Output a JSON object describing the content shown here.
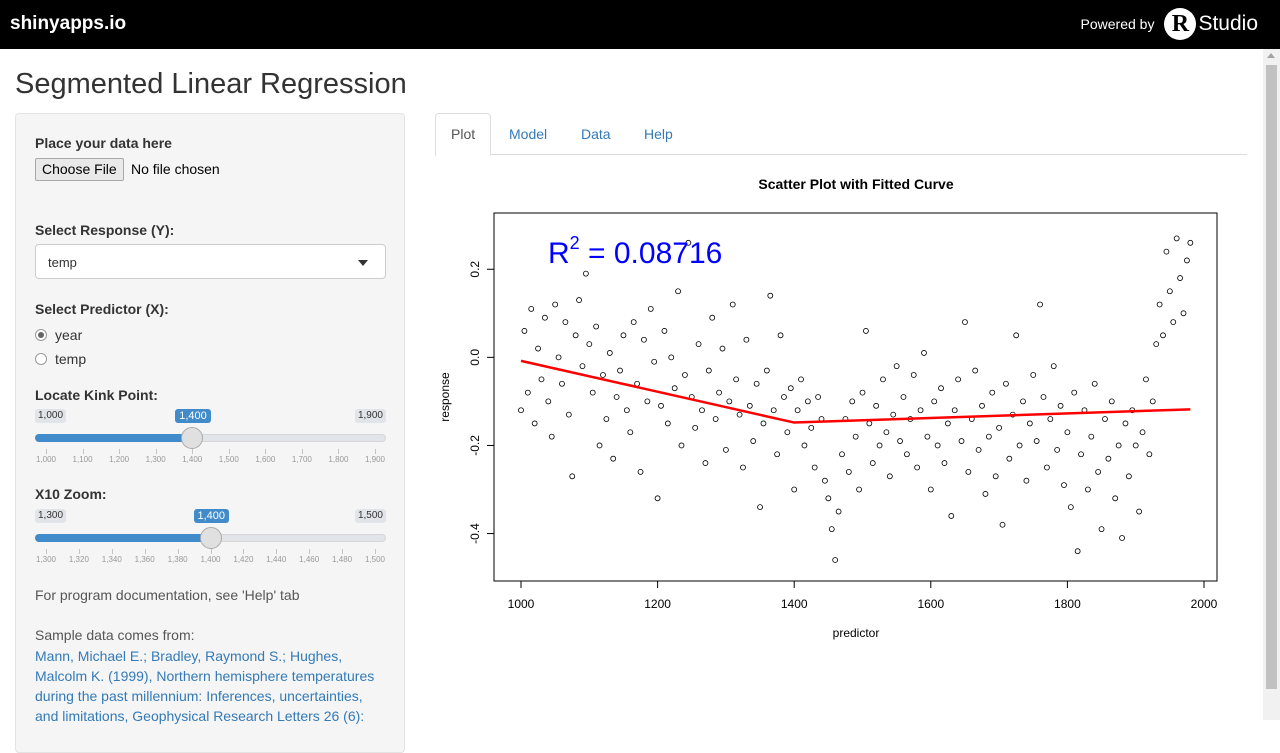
{
  "topbar": {
    "brand": "shinyapps.io",
    "powered_by": "Powered by",
    "rstudio_r": "R",
    "rstudio_studio": "Studio"
  },
  "page": {
    "title": "Segmented Linear Regression"
  },
  "sidebar": {
    "data_label": "Place your data here",
    "choose_file": "Choose File",
    "file_status": "No file chosen",
    "response_label": "Select Response (Y):",
    "response_value": "temp",
    "predictor_label": "Select Predictor (X):",
    "predictor_options": [
      {
        "label": "year",
        "selected": true
      },
      {
        "label": "temp",
        "selected": false
      }
    ],
    "kink_label": "Locate Kink Point:",
    "kink_slider": {
      "min": 1000,
      "max": 1900,
      "value": 1400,
      "min_label": "1,000",
      "max_label": "1,900",
      "value_label": "1,400",
      "ticks": [
        "1,000",
        "1,100",
        "1,200",
        "1,300",
        "1,400",
        "1,500",
        "1,600",
        "1,700",
        "1,800",
        "1,900"
      ]
    },
    "zoom_label": "X10 Zoom:",
    "zoom_slider": {
      "min": 1300,
      "max": 1500,
      "value": 1400,
      "min_label": "1,300",
      "max_label": "1,500",
      "value_label": "1,400",
      "ticks": [
        "1,300",
        "1,320",
        "1,340",
        "1,360",
        "1,380",
        "1,400",
        "1,420",
        "1,440",
        "1,460",
        "1,480",
        "1,500"
      ]
    },
    "doc_note": "For program documentation, see 'Help' tab",
    "sample_note": "Sample data comes from:",
    "citation": "Mann, Michael E.; Bradley, Raymond S.; Hughes, Malcolm K. (1999), Northern hemisphere temperatures during the past millennium: Inferences, uncertainties, and limitations, Geophysical Research Letters 26 (6):"
  },
  "tabs": [
    {
      "label": "Plot",
      "active": true
    },
    {
      "label": "Model",
      "active": false
    },
    {
      "label": "Data",
      "active": false
    },
    {
      "label": "Help",
      "active": false
    }
  ],
  "colors": {
    "fit_line": "#ff0000",
    "r2_text": "#0000ff",
    "link": "#337ab7",
    "slider_fill": "#428bca"
  },
  "chart_data": {
    "type": "scatter",
    "title": "Scatter Plot with Fitted Curve",
    "xlabel": "predictor",
    "ylabel": "response",
    "xlim": [
      1000,
      1980
    ],
    "ylim": [
      -0.46,
      0.28
    ],
    "xticks": [
      1000,
      1200,
      1400,
      1600,
      1800,
      2000
    ],
    "yticks": [
      -0.4,
      -0.2,
      0.0,
      0.2
    ],
    "ytick_labels": [
      "-0.4",
      "-0.2",
      "0.0",
      "0.2"
    ],
    "annotation": {
      "label_base": "R",
      "label_sup": "2",
      "label_rest": " = 0.08716"
    },
    "fit_line": {
      "x": [
        1000,
        1400,
        1980
      ],
      "y": [
        -0.008,
        -0.148,
        -0.118
      ]
    },
    "series": [
      {
        "points": [
          [
            1000,
            -0.12
          ],
          [
            1005,
            0.06
          ],
          [
            1010,
            -0.08
          ],
          [
            1015,
            0.11
          ],
          [
            1020,
            -0.15
          ],
          [
            1025,
            0.02
          ],
          [
            1030,
            -0.05
          ],
          [
            1035,
            0.09
          ],
          [
            1040,
            -0.1
          ],
          [
            1045,
            -0.18
          ],
          [
            1050,
            0.12
          ],
          [
            1055,
            0.0
          ],
          [
            1060,
            -0.06
          ],
          [
            1065,
            0.08
          ],
          [
            1070,
            -0.13
          ],
          [
            1075,
            -0.27
          ],
          [
            1080,
            0.05
          ],
          [
            1085,
            0.13
          ],
          [
            1090,
            -0.02
          ],
          [
            1095,
            0.19
          ],
          [
            1100,
            0.03
          ],
          [
            1105,
            -0.08
          ],
          [
            1110,
            0.07
          ],
          [
            1115,
            -0.2
          ],
          [
            1120,
            -0.04
          ],
          [
            1125,
            -0.14
          ],
          [
            1130,
            0.01
          ],
          [
            1135,
            -0.23
          ],
          [
            1140,
            -0.09
          ],
          [
            1145,
            -0.03
          ],
          [
            1150,
            0.05
          ],
          [
            1155,
            -0.12
          ],
          [
            1160,
            -0.17
          ],
          [
            1165,
            0.08
          ],
          [
            1170,
            -0.06
          ],
          [
            1175,
            -0.26
          ],
          [
            1180,
            0.04
          ],
          [
            1185,
            -0.1
          ],
          [
            1190,
            0.11
          ],
          [
            1195,
            -0.01
          ],
          [
            1200,
            -0.32
          ],
          [
            1205,
            -0.11
          ],
          [
            1210,
            0.06
          ],
          [
            1215,
            -0.15
          ],
          [
            1220,
            0.0
          ],
          [
            1225,
            -0.07
          ],
          [
            1230,
            0.15
          ],
          [
            1235,
            -0.2
          ],
          [
            1240,
            -0.04
          ],
          [
            1245,
            0.26
          ],
          [
            1250,
            -0.09
          ],
          [
            1255,
            -0.16
          ],
          [
            1260,
            0.03
          ],
          [
            1265,
            -0.12
          ],
          [
            1270,
            -0.24
          ],
          [
            1275,
            -0.03
          ],
          [
            1280,
            0.09
          ],
          [
            1285,
            -0.14
          ],
          [
            1290,
            -0.08
          ],
          [
            1295,
            0.02
          ],
          [
            1300,
            -0.21
          ],
          [
            1305,
            -0.1
          ],
          [
            1310,
            0.12
          ],
          [
            1315,
            -0.05
          ],
          [
            1320,
            -0.13
          ],
          [
            1325,
            -0.25
          ],
          [
            1330,
            0.04
          ],
          [
            1335,
            -0.11
          ],
          [
            1340,
            -0.19
          ],
          [
            1345,
            -0.06
          ],
          [
            1350,
            -0.34
          ],
          [
            1355,
            -0.15
          ],
          [
            1360,
            -0.03
          ],
          [
            1365,
            0.14
          ],
          [
            1370,
            -0.12
          ],
          [
            1375,
            -0.22
          ],
          [
            1380,
            0.05
          ],
          [
            1385,
            -0.09
          ],
          [
            1390,
            -0.17
          ],
          [
            1395,
            -0.07
          ],
          [
            1400,
            -0.3
          ],
          [
            1405,
            -0.12
          ],
          [
            1410,
            -0.05
          ],
          [
            1415,
            -0.2
          ],
          [
            1420,
            -0.1
          ],
          [
            1425,
            -0.16
          ],
          [
            1430,
            -0.25
          ],
          [
            1435,
            -0.09
          ],
          [
            1440,
            -0.14
          ],
          [
            1445,
            -0.28
          ],
          [
            1450,
            -0.32
          ],
          [
            1455,
            -0.39
          ],
          [
            1460,
            -0.46
          ],
          [
            1465,
            -0.35
          ],
          [
            1470,
            -0.22
          ],
          [
            1475,
            -0.14
          ],
          [
            1480,
            -0.26
          ],
          [
            1485,
            -0.1
          ],
          [
            1490,
            -0.18
          ],
          [
            1495,
            -0.3
          ],
          [
            1500,
            -0.08
          ],
          [
            1505,
            0.06
          ],
          [
            1510,
            -0.15
          ],
          [
            1515,
            -0.24
          ],
          [
            1520,
            -0.11
          ],
          [
            1525,
            -0.2
          ],
          [
            1530,
            -0.05
          ],
          [
            1535,
            -0.17
          ],
          [
            1540,
            -0.27
          ],
          [
            1545,
            -0.13
          ],
          [
            1550,
            -0.02
          ],
          [
            1555,
            -0.19
          ],
          [
            1560,
            -0.09
          ],
          [
            1565,
            -0.22
          ],
          [
            1570,
            -0.14
          ],
          [
            1575,
            -0.04
          ],
          [
            1580,
            -0.25
          ],
          [
            1585,
            -0.12
          ],
          [
            1590,
            0.01
          ],
          [
            1595,
            -0.18
          ],
          [
            1600,
            -0.3
          ],
          [
            1605,
            -0.1
          ],
          [
            1610,
            -0.2
          ],
          [
            1615,
            -0.07
          ],
          [
            1620,
            -0.24
          ],
          [
            1625,
            -0.15
          ],
          [
            1630,
            -0.36
          ],
          [
            1635,
            -0.12
          ],
          [
            1640,
            -0.05
          ],
          [
            1645,
            -0.19
          ],
          [
            1650,
            0.08
          ],
          [
            1655,
            -0.26
          ],
          [
            1660,
            -0.14
          ],
          [
            1665,
            -0.03
          ],
          [
            1670,
            -0.21
          ],
          [
            1675,
            -0.11
          ],
          [
            1680,
            -0.31
          ],
          [
            1685,
            -0.18
          ],
          [
            1690,
            -0.08
          ],
          [
            1695,
            -0.27
          ],
          [
            1700,
            -0.16
          ],
          [
            1705,
            -0.38
          ],
          [
            1710,
            -0.06
          ],
          [
            1715,
            -0.23
          ],
          [
            1720,
            -0.13
          ],
          [
            1725,
            0.05
          ],
          [
            1730,
            -0.2
          ],
          [
            1735,
            -0.1
          ],
          [
            1740,
            -0.28
          ],
          [
            1745,
            -0.15
          ],
          [
            1750,
            -0.04
          ],
          [
            1755,
            -0.19
          ],
          [
            1760,
            0.12
          ],
          [
            1765,
            -0.09
          ],
          [
            1770,
            -0.25
          ],
          [
            1775,
            -0.14
          ],
          [
            1780,
            -0.02
          ],
          [
            1785,
            -0.21
          ],
          [
            1790,
            -0.11
          ],
          [
            1795,
            -0.29
          ],
          [
            1800,
            -0.17
          ],
          [
            1805,
            -0.34
          ],
          [
            1810,
            -0.08
          ],
          [
            1815,
            -0.44
          ],
          [
            1820,
            -0.22
          ],
          [
            1825,
            -0.12
          ],
          [
            1830,
            -0.3
          ],
          [
            1835,
            -0.18
          ],
          [
            1840,
            -0.06
          ],
          [
            1845,
            -0.26
          ],
          [
            1850,
            -0.39
          ],
          [
            1855,
            -0.14
          ],
          [
            1860,
            -0.23
          ],
          [
            1865,
            -0.1
          ],
          [
            1870,
            -0.32
          ],
          [
            1875,
            -0.2
          ],
          [
            1880,
            -0.41
          ],
          [
            1885,
            -0.15
          ],
          [
            1890,
            -0.27
          ],
          [
            1895,
            -0.12
          ],
          [
            1900,
            -0.2
          ],
          [
            1905,
            -0.35
          ],
          [
            1910,
            -0.17
          ],
          [
            1915,
            -0.05
          ],
          [
            1920,
            -0.22
          ],
          [
            1925,
            -0.1
          ],
          [
            1930,
            0.03
          ],
          [
            1935,
            0.12
          ],
          [
            1940,
            0.05
          ],
          [
            1945,
            0.24
          ],
          [
            1950,
            0.15
          ],
          [
            1955,
            0.08
          ],
          [
            1960,
            0.27
          ],
          [
            1965,
            0.18
          ],
          [
            1970,
            0.1
          ],
          [
            1975,
            0.22
          ],
          [
            1980,
            0.26
          ]
        ]
      }
    ]
  }
}
